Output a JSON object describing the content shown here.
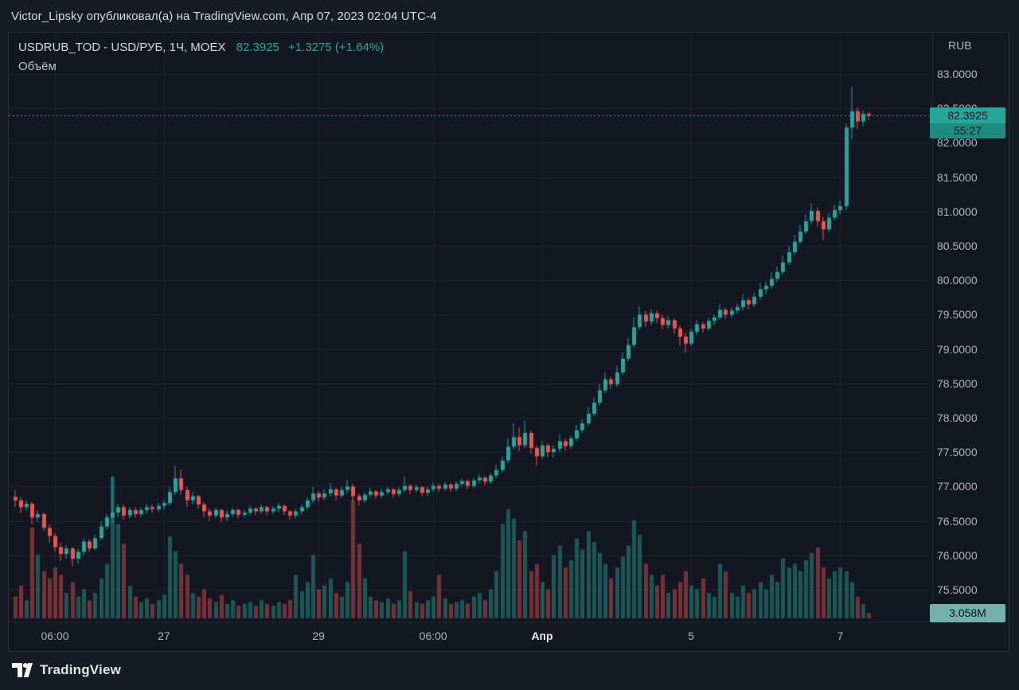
{
  "attribution": {
    "text": "Victor_Lipsky опубликовал(а) на TradingView.com, Апр 07, 2023 02:04 UTC-4"
  },
  "legend": {
    "symbol_title": "USDRUB_TOD - USD/РУБ, 1Ч, MOEX",
    "last_price": "82.3925",
    "change": "+1.3275 (+1.64%)",
    "indicator": "Объём"
  },
  "price_scale": {
    "currency_label": "RUB"
  },
  "price_line": {
    "price": "82.3925",
    "countdown": "55:27"
  },
  "volume_label": "3.058M",
  "footer": {
    "brand": "TradingView"
  },
  "colors": {
    "up": "#26a69a",
    "down": "#ef5350",
    "vol_up": "rgba(38,166,154,0.45)",
    "vol_down": "rgba(239,83,80,0.45)",
    "grid": "rgba(255,255,255,0.05)",
    "separator": "#232838",
    "price_line": "#26a69a",
    "badge_bg": "#26a69a",
    "badge_countdown_bg": "#1e8c7f",
    "badge_text": "#0b121e",
    "volume_badge_bg": "#71b3ab",
    "axis_text": "#b2b5be",
    "panel_bg": "#131722"
  },
  "chart_data": {
    "type": "candlestick",
    "title": "USDRUB_TOD - USD/РУБ, 1Ч, MOEX",
    "price_axis": {
      "min": 75.5,
      "max": 83.0,
      "step": 0.5,
      "tick_labels": [
        "83.0000",
        "82.5000",
        "82.0000",
        "81.5000",
        "81.0000",
        "80.5000",
        "80.0000",
        "79.5000",
        "79.0000",
        "78.5000",
        "78.0000",
        "77.5000",
        "77.0000",
        "76.5000",
        "76.0000",
        "75.5000"
      ]
    },
    "time_axis": {
      "ticks": [
        {
          "label": "06:00",
          "i": 7
        },
        {
          "label": "27",
          "i": 26
        },
        {
          "label": "29",
          "i": 53
        },
        {
          "label": "06:00",
          "i": 73
        },
        {
          "label": "Апр",
          "i": 92,
          "major": true
        },
        {
          "label": "5",
          "i": 118
        },
        {
          "label": "7",
          "i": 144
        }
      ]
    },
    "last_price": 82.3925,
    "last_volume_label": "3.058M",
    "columns": [
      "open",
      "high",
      "low",
      "close",
      "volume_millions"
    ],
    "candles": [
      [
        76.85,
        76.95,
        76.7,
        76.8,
        12
      ],
      [
        76.8,
        76.85,
        76.62,
        76.7,
        18
      ],
      [
        76.7,
        76.8,
        76.65,
        76.75,
        10
      ],
      [
        76.75,
        76.78,
        76.45,
        76.55,
        50
      ],
      [
        76.55,
        76.65,
        76.48,
        76.6,
        35
      ],
      [
        76.6,
        76.62,
        76.35,
        76.4,
        26
      ],
      [
        76.4,
        76.45,
        76.18,
        76.28,
        22
      ],
      [
        76.28,
        76.32,
        76.05,
        76.12,
        28
      ],
      [
        76.12,
        76.18,
        75.92,
        76.02,
        24
      ],
      [
        76.02,
        76.15,
        75.95,
        76.1,
        14
      ],
      [
        76.1,
        76.12,
        75.85,
        75.95,
        20
      ],
      [
        75.95,
        76.1,
        75.88,
        76.05,
        12
      ],
      [
        76.05,
        76.25,
        76.0,
        76.2,
        16
      ],
      [
        76.2,
        76.24,
        76.05,
        76.1,
        10
      ],
      [
        76.1,
        76.3,
        76.08,
        76.25,
        14
      ],
      [
        76.25,
        76.5,
        76.22,
        76.42,
        22
      ],
      [
        76.42,
        76.6,
        76.38,
        76.55,
        30
      ],
      [
        76.55,
        77.15,
        76.48,
        76.62,
        78
      ],
      [
        76.62,
        76.75,
        76.55,
        76.7,
        52
      ],
      [
        76.7,
        76.74,
        76.52,
        76.58,
        41
      ],
      [
        76.58,
        76.7,
        76.54,
        76.66,
        18
      ],
      [
        76.66,
        76.7,
        76.55,
        76.6,
        12
      ],
      [
        76.6,
        76.7,
        76.56,
        76.66,
        9
      ],
      [
        76.66,
        76.75,
        76.6,
        76.7,
        11
      ],
      [
        76.7,
        76.74,
        76.62,
        76.67,
        8
      ],
      [
        76.67,
        76.76,
        76.63,
        76.72,
        10
      ],
      [
        76.72,
        76.8,
        76.66,
        76.76,
        13
      ],
      [
        76.76,
        77.0,
        76.72,
        76.92,
        45
      ],
      [
        76.92,
        77.3,
        76.88,
        77.12,
        37
      ],
      [
        77.12,
        77.25,
        76.88,
        76.95,
        30
      ],
      [
        76.95,
        77.0,
        76.7,
        76.8,
        24
      ],
      [
        76.8,
        76.92,
        76.74,
        76.86,
        14
      ],
      [
        76.86,
        76.88,
        76.68,
        76.74,
        12
      ],
      [
        76.74,
        76.78,
        76.55,
        76.64,
        16
      ],
      [
        76.64,
        76.68,
        76.5,
        76.58,
        11
      ],
      [
        76.58,
        76.7,
        76.54,
        76.66,
        9
      ],
      [
        76.66,
        76.68,
        76.48,
        76.55,
        13
      ],
      [
        76.55,
        76.65,
        76.5,
        76.6,
        8
      ],
      [
        76.6,
        76.7,
        76.56,
        76.66,
        10
      ],
      [
        76.66,
        76.68,
        76.54,
        76.59,
        7
      ],
      [
        76.59,
        76.66,
        76.55,
        76.62,
        8
      ],
      [
        76.62,
        76.72,
        76.58,
        76.68,
        9
      ],
      [
        76.68,
        76.7,
        76.58,
        76.64,
        7
      ],
      [
        76.64,
        76.74,
        76.6,
        76.7,
        10
      ],
      [
        76.7,
        76.72,
        76.58,
        76.64,
        8
      ],
      [
        76.64,
        76.72,
        76.6,
        76.68,
        7
      ],
      [
        76.68,
        76.76,
        76.62,
        76.72,
        9
      ],
      [
        76.72,
        76.74,
        76.58,
        76.64,
        8
      ],
      [
        76.64,
        76.66,
        76.52,
        76.58,
        10
      ],
      [
        76.58,
        76.68,
        76.54,
        76.64,
        24
      ],
      [
        76.64,
        76.74,
        76.6,
        76.7,
        15
      ],
      [
        76.7,
        76.85,
        76.66,
        76.8,
        20
      ],
      [
        76.8,
        77.0,
        76.76,
        76.9,
        35
      ],
      [
        76.9,
        76.94,
        76.78,
        76.84,
        16
      ],
      [
        76.84,
        76.96,
        76.8,
        76.9,
        18
      ],
      [
        76.9,
        77.05,
        76.86,
        76.96,
        22
      ],
      [
        76.96,
        76.98,
        76.8,
        76.87,
        14
      ],
      [
        76.87,
        77.0,
        76.83,
        76.95,
        12
      ],
      [
        76.95,
        77.1,
        76.9,
        77.0,
        20
      ],
      [
        77.0,
        77.04,
        76.78,
        76.86,
        65
      ],
      [
        76.86,
        76.9,
        76.72,
        76.8,
        41
      ],
      [
        76.8,
        76.92,
        76.76,
        76.88,
        22
      ],
      [
        76.88,
        76.98,
        76.84,
        76.93,
        12
      ],
      [
        76.93,
        76.95,
        76.82,
        76.87,
        10
      ],
      [
        76.87,
        76.97,
        76.83,
        76.92,
        9
      ],
      [
        76.92,
        77.0,
        76.88,
        76.96,
        11
      ],
      [
        76.96,
        76.98,
        76.84,
        76.89,
        8
      ],
      [
        76.89,
        76.99,
        76.85,
        76.95,
        10
      ],
      [
        76.95,
        77.15,
        76.91,
        77.01,
        37
      ],
      [
        77.01,
        77.04,
        76.89,
        76.95,
        15
      ],
      [
        76.95,
        77.03,
        76.91,
        76.99,
        9
      ],
      [
        76.99,
        77.01,
        76.86,
        76.91,
        8
      ],
      [
        76.91,
        77.0,
        76.87,
        76.96,
        10
      ],
      [
        76.96,
        77.06,
        76.92,
        77.01,
        12
      ],
      [
        77.01,
        77.04,
        76.92,
        76.97,
        24
      ],
      [
        76.97,
        77.07,
        76.93,
        77.03,
        11
      ],
      [
        77.03,
        77.05,
        76.92,
        76.97,
        8
      ],
      [
        76.97,
        77.08,
        76.93,
        77.04,
        9
      ],
      [
        77.04,
        77.12,
        77.0,
        77.08,
        10
      ],
      [
        77.08,
        77.1,
        76.96,
        77.01,
        8
      ],
      [
        77.01,
        77.13,
        76.98,
        77.09,
        12
      ],
      [
        77.09,
        77.18,
        77.05,
        77.13,
        14
      ],
      [
        77.13,
        77.15,
        77.02,
        77.07,
        10
      ],
      [
        77.07,
        77.2,
        77.04,
        77.16,
        16
      ],
      [
        77.16,
        77.32,
        77.12,
        77.24,
        26
      ],
      [
        77.24,
        77.44,
        77.2,
        77.38,
        52
      ],
      [
        77.38,
        77.7,
        77.34,
        77.58,
        60
      ],
      [
        77.58,
        77.92,
        77.54,
        77.72,
        55
      ],
      [
        77.72,
        77.86,
        77.52,
        77.6,
        43
      ],
      [
        77.6,
        77.96,
        77.56,
        77.78,
        48
      ],
      [
        77.78,
        77.82,
        77.48,
        77.56,
        26
      ],
      [
        77.56,
        77.6,
        77.3,
        77.44,
        30
      ],
      [
        77.44,
        77.66,
        77.4,
        77.6,
        20
      ],
      [
        77.6,
        77.63,
        77.42,
        77.5,
        16
      ],
      [
        77.5,
        77.6,
        77.42,
        77.55,
        35
      ],
      [
        77.55,
        77.76,
        77.5,
        77.66,
        40
      ],
      [
        77.66,
        77.7,
        77.52,
        77.59,
        28
      ],
      [
        77.59,
        77.74,
        77.55,
        77.7,
        32
      ],
      [
        77.7,
        77.9,
        77.66,
        77.82,
        44
      ],
      [
        77.82,
        77.98,
        77.78,
        77.92,
        38
      ],
      [
        77.92,
        78.16,
        77.88,
        78.06,
        48
      ],
      [
        78.06,
        78.3,
        78.02,
        78.22,
        42
      ],
      [
        78.22,
        78.5,
        78.18,
        78.4,
        36
      ],
      [
        78.4,
        78.66,
        78.36,
        78.56,
        30
      ],
      [
        78.56,
        78.6,
        78.42,
        78.49,
        22
      ],
      [
        78.49,
        78.76,
        78.45,
        78.66,
        28
      ],
      [
        78.66,
        78.95,
        78.62,
        78.86,
        34
      ],
      [
        78.86,
        79.16,
        78.82,
        79.06,
        40
      ],
      [
        79.06,
        79.46,
        79.02,
        79.32,
        54
      ],
      [
        79.32,
        79.62,
        79.28,
        79.5,
        46
      ],
      [
        79.5,
        79.56,
        79.32,
        79.4,
        30
      ],
      [
        79.4,
        79.58,
        79.35,
        79.52,
        24
      ],
      [
        79.52,
        79.56,
        79.38,
        79.45,
        18
      ],
      [
        79.45,
        79.5,
        79.28,
        79.35,
        24
      ],
      [
        79.35,
        79.48,
        79.3,
        79.42,
        14
      ],
      [
        79.42,
        79.45,
        79.22,
        79.3,
        16
      ],
      [
        79.3,
        79.34,
        79.05,
        79.18,
        20
      ],
      [
        79.18,
        79.24,
        78.95,
        79.08,
        26
      ],
      [
        79.08,
        79.3,
        79.04,
        79.25,
        18
      ],
      [
        79.25,
        79.42,
        79.2,
        79.36,
        16
      ],
      [
        79.36,
        79.4,
        79.24,
        79.3,
        22
      ],
      [
        79.3,
        79.46,
        79.26,
        79.41,
        14
      ],
      [
        79.41,
        79.5,
        79.35,
        79.46,
        12
      ],
      [
        79.46,
        79.66,
        79.42,
        79.57,
        30
      ],
      [
        79.57,
        79.6,
        79.44,
        79.5,
        26
      ],
      [
        79.5,
        79.61,
        79.46,
        79.56,
        14
      ],
      [
        79.56,
        79.66,
        79.51,
        79.61,
        12
      ],
      [
        79.61,
        79.8,
        79.56,
        79.71,
        18
      ],
      [
        79.71,
        79.75,
        79.58,
        79.65,
        14
      ],
      [
        79.65,
        79.82,
        79.61,
        79.76,
        16
      ],
      [
        79.76,
        79.96,
        79.72,
        79.87,
        20
      ],
      [
        79.87,
        79.98,
        79.8,
        79.92,
        16
      ],
      [
        79.92,
        80.12,
        79.88,
        80.02,
        24
      ],
      [
        80.02,
        80.2,
        79.97,
        80.12,
        20
      ],
      [
        80.12,
        80.36,
        80.08,
        80.26,
        33
      ],
      [
        80.26,
        80.5,
        80.22,
        80.41,
        28
      ],
      [
        80.41,
        80.66,
        80.37,
        80.56,
        30
      ],
      [
        80.56,
        80.8,
        80.52,
        80.71,
        26
      ],
      [
        80.71,
        80.96,
        80.67,
        80.86,
        32
      ],
      [
        80.86,
        81.12,
        80.82,
        81.01,
        36
      ],
      [
        81.01,
        81.06,
        80.78,
        80.86,
        39
      ],
      [
        80.86,
        80.92,
        80.58,
        80.74,
        28
      ],
      [
        80.74,
        80.98,
        80.7,
        80.91,
        22
      ],
      [
        80.91,
        81.1,
        80.87,
        81.02,
        26
      ],
      [
        81.02,
        81.16,
        80.96,
        81.08,
        28
      ],
      [
        81.08,
        82.28,
        81.02,
        82.22,
        26
      ],
      [
        82.22,
        82.82,
        82.05,
        82.46,
        20
      ],
      [
        82.46,
        82.52,
        82.2,
        82.31,
        12
      ],
      [
        82.31,
        82.47,
        82.24,
        82.42,
        8
      ],
      [
        82.42,
        82.45,
        82.33,
        82.39,
        3.058
      ]
    ]
  }
}
